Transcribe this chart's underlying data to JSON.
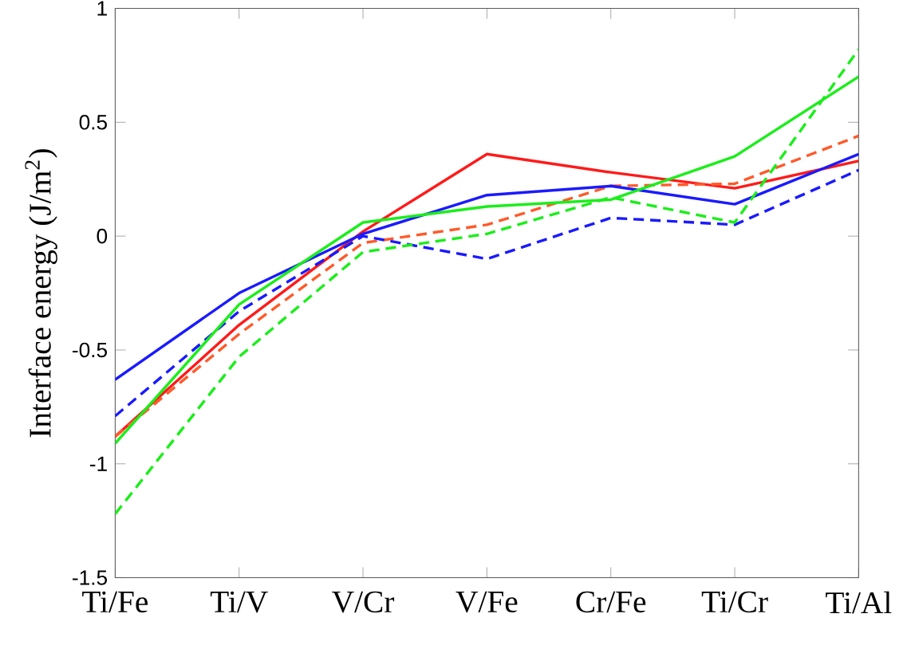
{
  "chart_data": {
    "type": "line",
    "ylabel": "Interface energy (J/m$^{2}$)",
    "categories": [
      "Ti/Fe",
      "Ti/V",
      "V/Cr",
      "V/Fe",
      "Cr/Fe",
      "Ti/Cr",
      "Ti/Al"
    ],
    "ylim": [
      -1.5,
      1
    ],
    "yticks": [
      -1.5,
      -1,
      -0.5,
      0,
      0.5,
      1
    ],
    "grid": false,
    "marker": "none",
    "series": [
      {
        "color": "#ff1a1a",
        "line_style": "solid",
        "values": [
          -0.88,
          -0.39,
          0.02,
          0.36,
          0.28,
          0.21,
          0.33
        ]
      },
      {
        "color": "#ff5a2a",
        "line_style": "dashed",
        "values": [
          -0.88,
          -0.43,
          -0.03,
          0.05,
          0.22,
          0.23,
          0.44
        ]
      },
      {
        "color": "#1a1aff",
        "line_style": "solid",
        "values": [
          -0.63,
          -0.25,
          0.01,
          0.18,
          0.22,
          0.14,
          0.36
        ]
      },
      {
        "color": "#1a1aff",
        "line_style": "dashed",
        "values": [
          -0.79,
          -0.33,
          0.0,
          -0.1,
          0.08,
          0.05,
          0.29
        ]
      },
      {
        "color": "#1aee1a",
        "line_style": "solid",
        "values": [
          -0.91,
          -0.3,
          0.06,
          0.13,
          0.16,
          0.35,
          0.7
        ]
      },
      {
        "color": "#1aee1a",
        "line_style": "dashed",
        "values": [
          -1.22,
          -0.53,
          -0.07,
          0.01,
          0.17,
          0.06,
          0.82
        ]
      }
    ]
  }
}
